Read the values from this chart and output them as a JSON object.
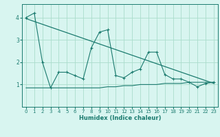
{
  "xlabel": "Humidex (Indice chaleur)",
  "ylabel": "",
  "bg_color": "#d8f5f0",
  "line_color": "#1a7a6e",
  "grid_color": "#aaddcc",
  "xlim": [
    -0.5,
    23.5
  ],
  "ylim": [
    0.0,
    4.6
  ],
  "yticks": [
    1,
    2,
    3,
    4
  ],
  "xticks": [
    0,
    1,
    2,
    3,
    4,
    5,
    6,
    7,
    8,
    9,
    10,
    11,
    12,
    13,
    14,
    15,
    16,
    17,
    18,
    19,
    20,
    21,
    22,
    23
  ],
  "series1": [
    4.0,
    4.2,
    2.0,
    0.85,
    1.55,
    1.55,
    1.4,
    1.25,
    2.65,
    3.35,
    3.45,
    1.4,
    1.3,
    1.55,
    1.7,
    2.45,
    2.45,
    1.45,
    1.25,
    1.25,
    1.1,
    0.9,
    1.05,
    1.1
  ],
  "series2": [
    0.85,
    0.85,
    0.85,
    0.85,
    0.85,
    0.85,
    0.85,
    0.85,
    0.85,
    0.85,
    0.9,
    0.9,
    0.95,
    0.95,
    1.0,
    1.0,
    1.0,
    1.05,
    1.05,
    1.05,
    1.1,
    1.1,
    1.1,
    1.1
  ],
  "trend_x": [
    0,
    23
  ],
  "trend_y": [
    3.95,
    1.05
  ],
  "tick_fontsize": 5.0,
  "xlabel_fontsize": 6.0,
  "fig_width": 3.2,
  "fig_height": 2.0,
  "dpi": 100
}
